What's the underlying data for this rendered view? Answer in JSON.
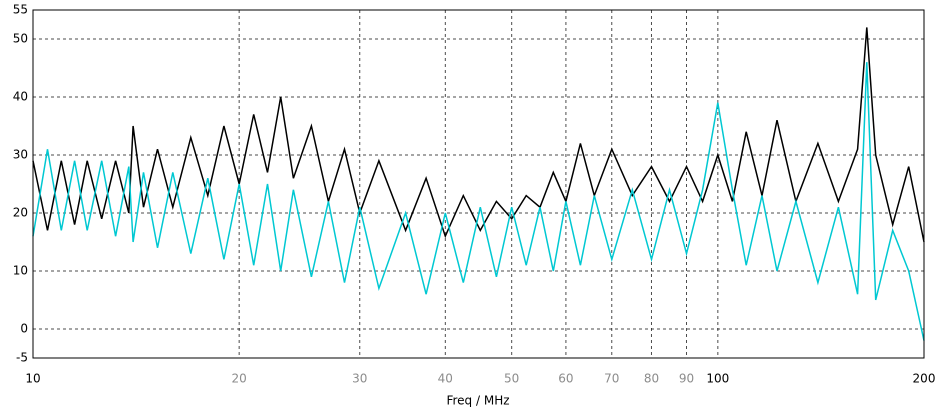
{
  "chart_data": {
    "type": "line",
    "x_label": "Freq / MHz",
    "x": [
      10,
      10.5,
      11,
      11.5,
      12,
      12.6,
      13.2,
      13.8,
      14,
      14.5,
      15.2,
      16,
      17,
      18,
      19,
      20,
      21,
      22,
      23,
      24,
      25.5,
      27,
      28.5,
      30,
      32,
      35,
      37.5,
      40,
      42.5,
      45,
      47.5,
      50,
      52.5,
      55,
      57.5,
      60,
      63,
      66,
      70,
      75,
      80,
      85,
      90,
      95,
      100,
      105,
      110,
      116,
      122,
      130,
      140,
      150,
      160,
      165,
      170,
      180,
      190,
      200
    ],
    "series": [
      {
        "color": "#000000",
        "values": [
          29,
          17,
          29,
          18,
          29,
          19,
          29,
          20,
          35,
          21,
          31,
          21,
          33,
          23,
          35,
          25,
          37,
          27,
          40,
          26,
          35,
          22,
          31,
          20,
          29,
          17,
          26,
          16,
          23,
          17,
          22,
          19,
          23,
          21,
          27,
          22,
          32,
          23,
          31,
          23,
          28,
          22,
          28,
          22,
          30,
          22,
          34,
          23,
          36,
          22,
          32,
          22,
          31,
          52,
          30,
          18,
          28,
          15
        ]
      },
      {
        "color": "#00c8d2",
        "values": [
          16,
          31,
          17,
          29,
          17,
          29,
          16,
          28,
          15,
          27,
          14,
          27,
          13,
          26,
          12,
          25,
          11,
          25,
          10,
          24,
          9,
          22,
          8,
          21,
          7,
          20,
          6,
          20,
          8,
          21,
          9,
          21,
          11,
          21,
          10,
          22,
          11,
          23,
          12,
          24,
          12,
          24,
          13,
          24,
          39,
          24,
          11,
          23,
          10,
          22,
          8,
          21,
          6,
          46,
          5,
          17,
          10,
          -2
        ]
      }
    ],
    "xlim": [
      10,
      200
    ],
    "xticks": [
      10,
      20,
      30,
      40,
      50,
      60,
      70,
      80,
      90,
      100,
      200
    ],
    "ylim": [
      -5,
      55
    ],
    "yticks": [
      -5,
      0,
      10,
      20,
      30,
      40,
      50,
      55
    ],
    "x_log": true,
    "grid": true,
    "decade_tick_color": "#000000",
    "minor_tick_color": "#8c8c8c"
  }
}
